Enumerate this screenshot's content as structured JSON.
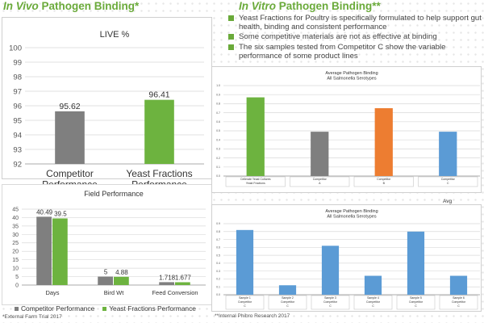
{
  "titles": {
    "left_italic": "In Vivo",
    "left_rest": " Pathogen Binding*",
    "right_italic": "In Vitro",
    "right_rest": " Pathogen Binding**"
  },
  "bullets": [
    "Yeast Fractions for Poultry is specifically formulated to help support gut health, binding and consistent performance",
    "Some competitive materials are not as effective at binding",
    "The six samples tested from Competitor C show the variable performance of some product lines"
  ],
  "footnotes": {
    "left": "*External Farm Trial 2017",
    "right": "**Internal Phibro Research 2017"
  },
  "colors": {
    "brand_green": "#6aaa3a",
    "competitor_gray": "#7f7f7f",
    "yeast_green": "#6db33f",
    "orange": "#ed7d31",
    "blue": "#5b9bd5"
  },
  "legend": {
    "competitor": "Competitor Performance",
    "yeast": "Yeast Fractions Performance"
  },
  "avg_label": "Avg",
  "chart_data": [
    {
      "type": "bar",
      "title": "LIVE %",
      "categories": [
        "Competitor Performance",
        "Yeast Fractions Performance"
      ],
      "category_lines": [
        [
          "Competitor",
          "Performance"
        ],
        [
          "Yeast Fractions",
          "Performance"
        ]
      ],
      "values": [
        95.62,
        96.41
      ],
      "data_labels": [
        "95.62",
        "96.41"
      ],
      "bar_colors": [
        "#7f7f7f",
        "#6db33f"
      ],
      "ylim": [
        92,
        100
      ],
      "yticks": [
        "92",
        "93",
        "94",
        "95",
        "96",
        "97",
        "98",
        "99",
        "100"
      ],
      "grid": true
    },
    {
      "type": "bar",
      "title": "Field Performance",
      "categories": [
        "Days",
        "Bird Wt",
        "Feed Conversion"
      ],
      "series": [
        {
          "name": "Competitor Performance",
          "values": [
            40.49,
            5,
            1.718
          ],
          "labels": [
            "40.49",
            "5",
            "1.718"
          ],
          "color": "#7f7f7f"
        },
        {
          "name": "Yeast Fractions Performance",
          "values": [
            39.5,
            4.88,
            1.677
          ],
          "labels": [
            "39.5",
            "4.88",
            "1.677"
          ],
          "color": "#6db33f"
        }
      ],
      "ylim": [
        0,
        45
      ],
      "yticks": [
        "0",
        "5",
        "10",
        "15",
        "20",
        "25",
        "30",
        "35",
        "40",
        "45"
      ],
      "legend_position": "bottom",
      "grid": true
    },
    {
      "type": "bar",
      "title": "Average Pathogen Binding",
      "subtitle": "All Salmonella Serotypes",
      "categories": [
        "Cellerate Yeast Cultures Yeast Fractions",
        "Competitor A",
        "Competitor B",
        "Competitor C"
      ],
      "category_lines": [
        [
          "Cellerate Yeast Cultures",
          "Yeast Fractions"
        ],
        [
          "Competitor",
          "A"
        ],
        [
          "Competitor",
          "B"
        ],
        [
          "Competitor",
          "C"
        ]
      ],
      "values": [
        0.87,
        0.49,
        0.75,
        0.49
      ],
      "bar_colors": [
        "#6db33f",
        "#7f7f7f",
        "#ed7d31",
        "#5b9bd5"
      ],
      "ylim": [
        0,
        1.0
      ],
      "yticks": [
        "0.0",
        "0.1",
        "0.2",
        "0.3",
        "0.4",
        "0.5",
        "0.6",
        "0.7",
        "0.8",
        "0.9",
        "1.0"
      ],
      "grid": true
    },
    {
      "type": "bar",
      "title": "Average Pathogen Binding",
      "subtitle": "All Salmonella Serotypes",
      "categories": [
        "Sample 1 Competitor C",
        "Sample 2 Competitor C",
        "Sample 3 Competitor C",
        "Sample 4 Competitor C",
        "Sample 5 Competitor C",
        "Sample 6 Competitor C"
      ],
      "category_lines": [
        [
          "Sample 1",
          "Competitor",
          "C"
        ],
        [
          "Sample 2",
          "Competitor",
          "C"
        ],
        [
          "Sample 3",
          "Competitor",
          "C"
        ],
        [
          "Sample 4",
          "Competitor",
          "C"
        ],
        [
          "Sample 5",
          "Competitor",
          "C"
        ],
        [
          "Sample 6",
          "Competitor",
          "C"
        ]
      ],
      "values": [
        0.82,
        0.12,
        0.62,
        0.24,
        0.8,
        0.24
      ],
      "bar_colors": [
        "#5b9bd5",
        "#5b9bd5",
        "#5b9bd5",
        "#5b9bd5",
        "#5b9bd5",
        "#5b9bd5"
      ],
      "ylim": [
        0,
        0.9
      ],
      "yticks": [
        "0.0",
        "0.1",
        "0.2",
        "0.3",
        "0.4",
        "0.5",
        "0.6",
        "0.7",
        "0.8",
        "0.9"
      ],
      "grid": true
    }
  ]
}
